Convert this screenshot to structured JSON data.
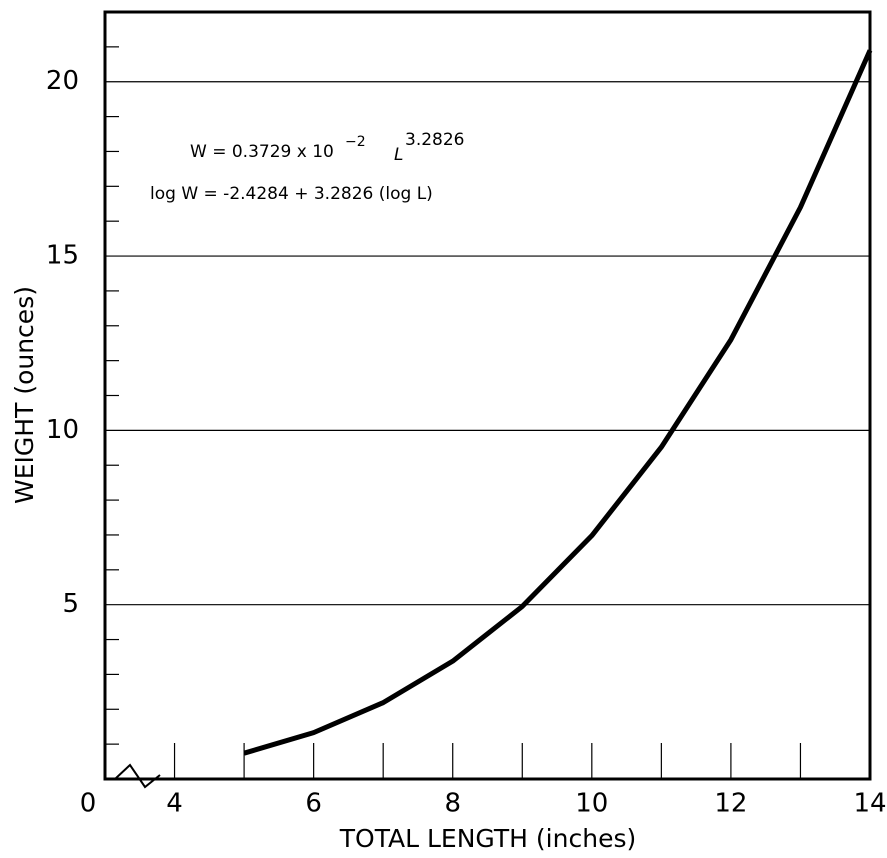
{
  "chart_data": {
    "type": "line",
    "x_label": "TOTAL LENGTH (inches)",
    "y_label": "WEIGHT (ounces)",
    "origin_label": "0",
    "equation_1": {
      "base": "W = 0.3729 x 10",
      "exponent": "−2",
      "variable": "L",
      "power": "3.2826"
    },
    "equation_2": "log W = -2.4284 + 3.2826 (log L)",
    "x": [
      5,
      6,
      7,
      8,
      9,
      10,
      11,
      12,
      13,
      14
    ],
    "series": [
      {
        "name": "Weight",
        "color": "#000000",
        "values": [
          0.74,
          1.33,
          2.19,
          3.38,
          4.95,
          6.98,
          9.52,
          12.6,
          16.4,
          20.9
        ]
      }
    ],
    "xlim": [
      3,
      14
    ],
    "ylim": [
      0,
      22
    ],
    "xticks": [
      4,
      6,
      8,
      10,
      12,
      14
    ],
    "xminor_ticks": [
      5,
      7,
      9,
      11,
      13
    ],
    "yticks": [
      5,
      10,
      15,
      20
    ],
    "yminor_ticks": [
      1,
      2,
      3,
      4,
      6,
      7,
      8,
      9,
      11,
      12,
      13,
      14,
      16,
      17,
      18,
      19,
      21
    ],
    "grid": true
  }
}
